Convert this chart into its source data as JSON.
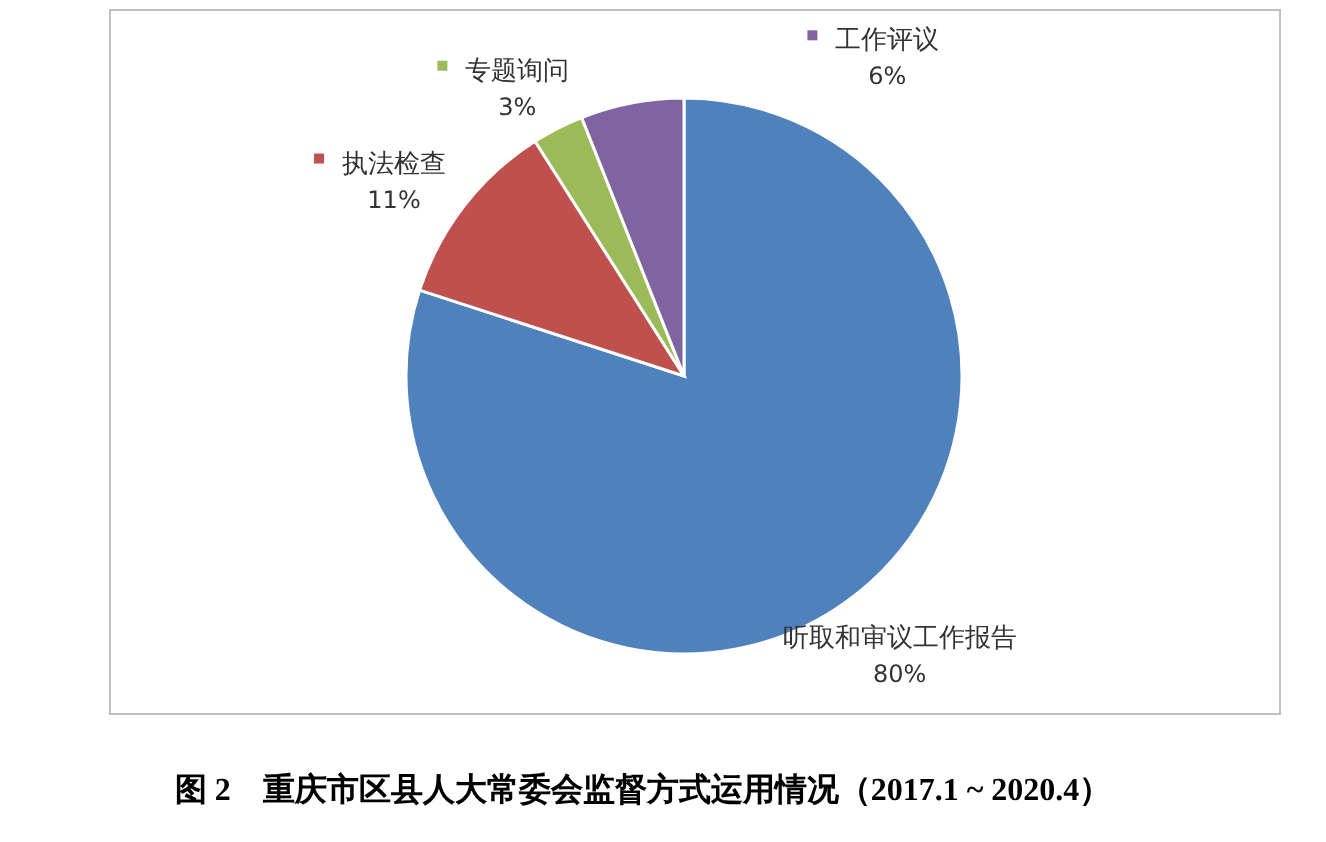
{
  "chart_data": {
    "type": "pie",
    "title": "图 2　重庆市区县人大常委会监督方式运用情况（2017.1 ~ 2020.4）",
    "categories": [
      "听取和审议工作报告",
      "执法检查",
      "专题询问",
      "工作评议"
    ],
    "values": [
      80,
      11,
      3,
      6
    ],
    "colors": [
      "#4f81bd",
      "#c0504d",
      "#9bbb59",
      "#8064a2"
    ],
    "value_labels": [
      "80%",
      "11%",
      "3%",
      "6%"
    ],
    "legend": "top"
  }
}
